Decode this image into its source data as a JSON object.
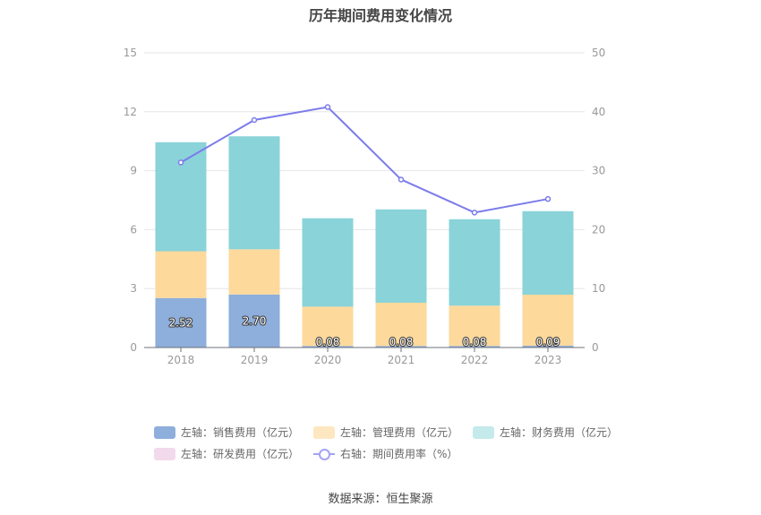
{
  "title": "历年期间费用变化情况",
  "source": "数据来源：恒生聚源",
  "colors": {
    "sales": "#8eaedb",
    "admin": "#fdd99c",
    "finance": "#89d3d9",
    "rd": "#f3d9ec",
    "rate": "#7b7bea"
  },
  "chart_data": {
    "type": "bar",
    "stacked": true,
    "categories": [
      "2018",
      "2019",
      "2020",
      "2021",
      "2022",
      "2023"
    ],
    "left_axis": {
      "min": 0,
      "max": 15,
      "ticks": [
        "0",
        "3",
        "6",
        "9",
        "12",
        "15"
      ]
    },
    "right_axis": {
      "min": 0,
      "max": 50,
      "ticks": [
        "0",
        "10",
        "20",
        "30",
        "40",
        "50"
      ]
    },
    "series": [
      {
        "key": "sales",
        "name": "左轴：销售费用（亿元）",
        "axis": "left",
        "type": "bar",
        "values": [
          2.52,
          2.7,
          0.08,
          0.08,
          0.08,
          0.09
        ],
        "labels": [
          "2.52",
          "2.70",
          "0.08",
          "0.08",
          "0.08",
          "0.09"
        ]
      },
      {
        "key": "admin",
        "name": "左轴：管理费用（亿元）",
        "axis": "left",
        "type": "bar",
        "values": [
          2.38,
          2.3,
          2.0,
          2.2,
          2.05,
          2.6
        ]
      },
      {
        "key": "finance",
        "name": "左轴：财务费用（亿元）",
        "axis": "left",
        "type": "bar",
        "values": [
          5.55,
          5.75,
          4.5,
          4.75,
          4.4,
          4.25
        ]
      },
      {
        "key": "rd",
        "name": "左轴：研发费用（亿元）",
        "axis": "left",
        "type": "bar",
        "values": [
          0,
          0,
          0,
          0,
          0,
          0
        ]
      },
      {
        "key": "rate",
        "name": "右轴：期间费用率（%）",
        "axis": "right",
        "type": "line",
        "values": [
          31.4,
          38.6,
          40.8,
          28.5,
          22.9,
          25.2
        ]
      }
    ]
  }
}
